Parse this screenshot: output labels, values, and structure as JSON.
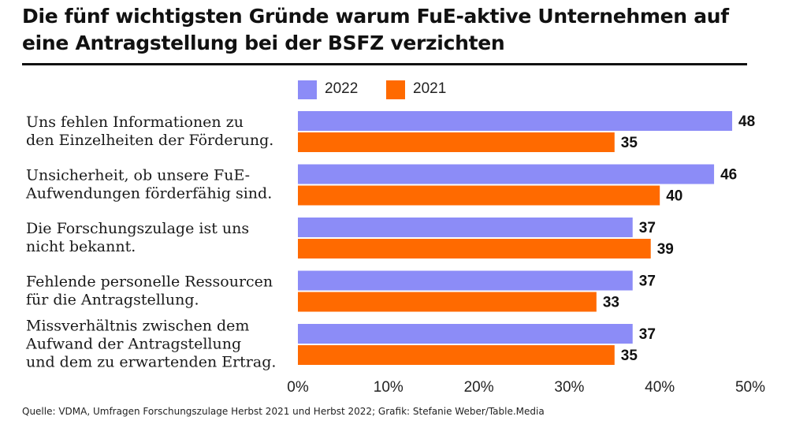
{
  "title": "Die fünf wichtigsten Gründe warum FuE-aktive Unternehmen auf eine Antragstellung bei der BSFZ verzichten",
  "source": "Quelle: VDMA, Umfragen Forschungszulage Herbst 2021 und Herbst 2022; Grafik: Stefanie Weber/Table.Media",
  "legend": [
    {
      "label": "2022",
      "color": "#8c8cf7"
    },
    {
      "label": "2021",
      "color": "#ff6a00"
    }
  ],
  "chart_data": {
    "type": "bar",
    "orientation": "horizontal",
    "title": "Die fünf wichtigsten Gründe warum FuE-aktive Unternehmen auf eine Antragstellung bei der BSFZ verzichten",
    "categories": [
      [
        "Uns fehlen Informationen zu",
        "den Einzelheiten der Förderung."
      ],
      [
        "Unsicherheit, ob unsere FuE-",
        "Aufwendungen förderfähig sind."
      ],
      [
        "Die Forschungszulage ist uns",
        "nicht bekannt."
      ],
      [
        "Fehlende personelle Ressourcen",
        "für die Antragstellung."
      ],
      [
        "Missverhältnis zwischen dem",
        "Aufwand der Antragstellung",
        "und dem zu erwartenden Ertrag."
      ]
    ],
    "series": [
      {
        "name": "2022",
        "color": "#8c8cf7",
        "values": [
          48,
          46,
          37,
          37,
          37
        ]
      },
      {
        "name": "2021",
        "color": "#ff6a00",
        "values": [
          35,
          40,
          39,
          33,
          35
        ]
      }
    ],
    "xlim": [
      0,
      50
    ],
    "xticks": [
      "0%",
      "10%",
      "20%",
      "30%",
      "40%",
      "50%"
    ],
    "xtick_values": [
      0,
      10,
      20,
      30,
      40,
      50
    ],
    "grid": false,
    "legend_position": "top"
  }
}
